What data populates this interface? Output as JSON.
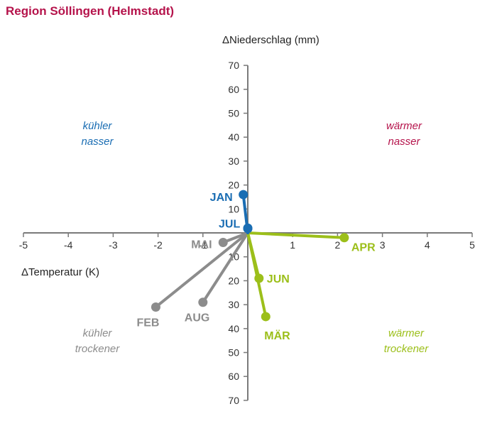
{
  "title": "Region Söllingen (Helmstadt)",
  "colors": {
    "title": "#b5134b",
    "axis": "#7a7a7a",
    "blue": "#1a6db3",
    "green": "#9cbf1a",
    "gray": "#8c8c8c",
    "red": "#b5134b"
  },
  "quadrants": {
    "top_left": [
      "kühler",
      "nasser"
    ],
    "top_right": [
      "wärmer",
      "nasser"
    ],
    "bottom_left": [
      "kühler",
      "trockener"
    ],
    "bottom_right": [
      "wärmer",
      "trockener"
    ]
  },
  "chart_data": {
    "type": "scatter",
    "xlabel": "Temperatur (K)",
    "ylabel": "Niederschlag (mm)",
    "delta_symbol": "Δ",
    "xlim": [
      -5,
      5
    ],
    "ylim": [
      -70,
      70
    ],
    "x_ticks": [
      "-5",
      "-4",
      "-3",
      "-2",
      "-1",
      "1",
      "2",
      "3",
      "4",
      "5"
    ],
    "y_ticks": [
      "70",
      "60",
      "50",
      "40",
      "30",
      "20",
      "10",
      "10",
      "20",
      "30",
      "40",
      "50",
      "60",
      "70"
    ],
    "origin": [
      0,
      0
    ],
    "points": [
      {
        "label": "JAN",
        "x": -0.1,
        "y": 16,
        "color": "blue"
      },
      {
        "label": "JUL",
        "x": 0.0,
        "y": 2,
        "color": "blue"
      },
      {
        "label": "FEB",
        "x": -2.05,
        "y": -31,
        "color": "gray"
      },
      {
        "label": "MAI",
        "x": -0.55,
        "y": -4,
        "color": "gray"
      },
      {
        "label": "AUG",
        "x": -1.0,
        "y": -29,
        "color": "gray"
      },
      {
        "label": "MÄR",
        "x": 0.4,
        "y": -35,
        "color": "green"
      },
      {
        "label": "APR",
        "x": 2.15,
        "y": -2,
        "color": "green"
      },
      {
        "label": "JUN",
        "x": 0.25,
        "y": -19,
        "color": "green"
      }
    ]
  }
}
